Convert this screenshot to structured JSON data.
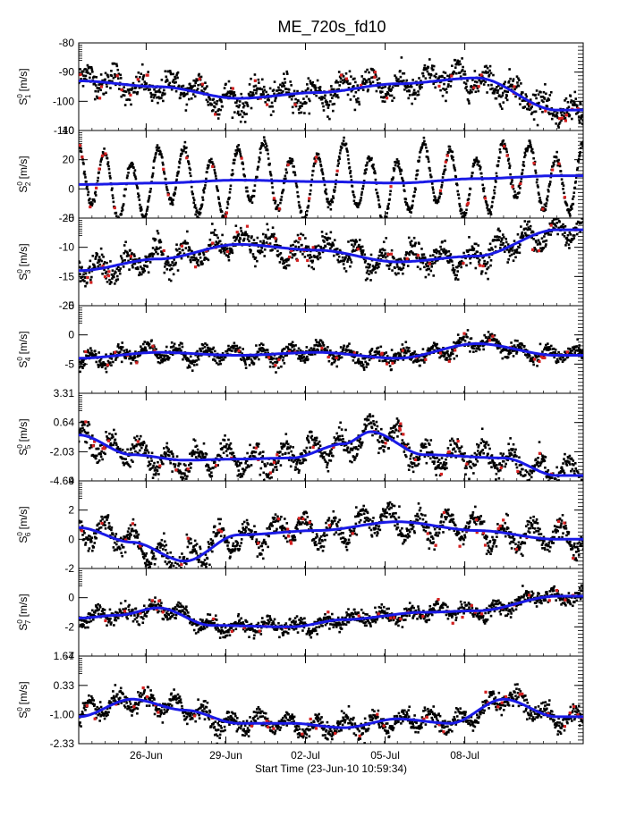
{
  "title": "ME_720s_fd10",
  "xlabel": "Start Time (23-Jun-10 10:59:34)",
  "x_tick_labels": [
    "26-Jun",
    "29-Jun",
    "02-Jul",
    "05-Jul",
    "08-Jul"
  ],
  "colors": {
    "data_points": "#000000",
    "flagged_points": "#d42020",
    "smooth_curve": "#1a1ae6"
  },
  "chart_data": [
    {
      "type": "scatter",
      "ylabel_sym": "S",
      "ylabel_sup": "0",
      "ylabel_sub": "1",
      "ylabel_unit": " [m/s]",
      "ylim": [
        -110,
        -80
      ],
      "yticks": [
        "-80",
        "-90",
        "-100",
        "-110"
      ],
      "baseline": -96,
      "osc_amp": 3,
      "noise": 2.2,
      "trend_days": [
        0,
        3,
        6,
        9,
        12,
        15,
        18
      ],
      "trend_values": [
        -93,
        -95,
        -99,
        -97,
        -94,
        -92,
        -103
      ]
    },
    {
      "type": "scatter",
      "ylabel_sym": "S",
      "ylabel_sup": "0",
      "ylabel_sub": "2",
      "ylabel_unit": " [m/s]",
      "ylim": [
        -20,
        40
      ],
      "yticks": [
        "40",
        "20",
        "0",
        "-20"
      ],
      "baseline": 4,
      "osc_amp": 20,
      "noise": 1.5,
      "trend_days": [
        0,
        3,
        6,
        9,
        12,
        15,
        18
      ],
      "trend_values": [
        3,
        4,
        6,
        5,
        4,
        7,
        9
      ]
    },
    {
      "type": "scatter",
      "ylabel_sym": "S",
      "ylabel_sup": "0",
      "ylabel_sub": "3",
      "ylabel_unit": " [m/s]",
      "ylim": [
        -20,
        -5
      ],
      "yticks": [
        "-5",
        "-10",
        "-15",
        "-20"
      ],
      "baseline": -11,
      "osc_amp": 1.6,
      "noise": 1.0,
      "trend_days": [
        0,
        3,
        6,
        9,
        12,
        15,
        18
      ],
      "trend_values": [
        -14,
        -12,
        -9.5,
        -10.5,
        -12.5,
        -11.5,
        -7
      ]
    },
    {
      "type": "scatter",
      "ylabel_sym": "S",
      "ylabel_sup": "0",
      "ylabel_sub": "4",
      "ylabel_unit": " [m/s]",
      "ylim": [
        -10,
        5
      ],
      "yticks": [
        "5",
        "0",
        "-5"
      ],
      "baseline": -3.5,
      "osc_amp": 1.0,
      "noise": 0.6,
      "trend_days": [
        0,
        3,
        6,
        9,
        12,
        15,
        18
      ],
      "trend_values": [
        -4,
        -3,
        -3.5,
        -3,
        -4,
        -1.5,
        -3.5
      ]
    },
    {
      "type": "scatter",
      "ylabel_sym": "S",
      "ylabel_sup": "0",
      "ylabel_sub": "5",
      "ylabel_unit": " [m/s]",
      "ylim": [
        -4.69,
        3.31
      ],
      "yticks": [
        "3.31",
        "0.64",
        "-2.03",
        "-4.69"
      ],
      "baseline": -2.3,
      "osc_amp": 1.0,
      "noise": 0.5,
      "trend_days": [
        0,
        2,
        4,
        6,
        8,
        10,
        11,
        13,
        16,
        18
      ],
      "trend_values": [
        -0.5,
        -2.3,
        -2.8,
        -2.7,
        -2.6,
        -1.3,
        -0.2,
        -2.3,
        -2.6,
        -4.2
      ]
    },
    {
      "type": "scatter",
      "ylabel_sym": "S",
      "ylabel_sup": "0",
      "ylabel_sub": "6",
      "ylabel_unit": " [m/s]",
      "ylim": [
        -2,
        4
      ],
      "yticks": [
        "4",
        "2",
        "0",
        "-2"
      ],
      "baseline": 0.2,
      "osc_amp": 0.8,
      "noise": 0.35,
      "trend_days": [
        0,
        2,
        4,
        6,
        9,
        12,
        15,
        18
      ],
      "trend_values": [
        0.8,
        -0.2,
        -1.5,
        0.3,
        0.6,
        1.2,
        0.6,
        0
      ]
    },
    {
      "type": "scatter",
      "ylabel_sym": "S",
      "ylabel_sup": "0",
      "ylabel_sub": "7",
      "ylabel_unit": " [m/s]",
      "ylim": [
        -4,
        2
      ],
      "yticks": [
        "0",
        "-2",
        "-4"
      ],
      "baseline": -1.2,
      "osc_amp": 0.3,
      "noise": 0.25,
      "trend_days": [
        0,
        1.5,
        3,
        5,
        8,
        10,
        13,
        15,
        18
      ],
      "trend_values": [
        -1.4,
        -1.2,
        -0.7,
        -1.9,
        -2.0,
        -1.5,
        -1.0,
        -0.9,
        0.1
      ]
    },
    {
      "type": "scatter",
      "ylabel_sym": "S",
      "ylabel_sup": "0",
      "ylabel_sub": "8",
      "ylabel_unit": " [m/s]",
      "ylim": [
        -2.33,
        1.67
      ],
      "yticks": [
        "1.67",
        "0.33",
        "-1.00",
        "-2.33"
      ],
      "baseline": -1.0,
      "osc_amp": 0.35,
      "noise": 0.2,
      "trend_days": [
        0,
        2,
        4,
        6,
        8,
        10,
        12,
        14,
        16,
        18
      ],
      "trend_values": [
        -1.1,
        -0.3,
        -0.8,
        -1.4,
        -1.4,
        -1.6,
        -1.2,
        -1.4,
        -0.3,
        -1.1
      ]
    }
  ]
}
